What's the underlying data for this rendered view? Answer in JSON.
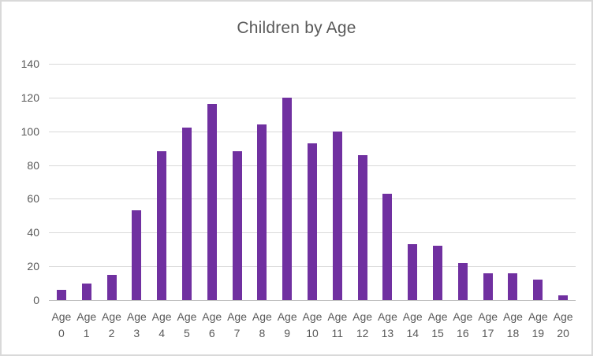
{
  "chart_data": {
    "type": "bar",
    "title": "Children by Age",
    "categories": [
      "Age 0",
      "Age 1",
      "Age 2",
      "Age 3",
      "Age 4",
      "Age 5",
      "Age 6",
      "Age 7",
      "Age 8",
      "Age 9",
      "Age 10",
      "Age 11",
      "Age 12",
      "Age 13",
      "Age 14",
      "Age 15",
      "Age 16",
      "Age 17",
      "Age 18",
      "Age 19",
      "Age 20"
    ],
    "values": [
      6,
      10,
      15,
      53,
      88,
      102,
      116,
      88,
      104,
      120,
      93,
      100,
      86,
      63,
      33,
      32,
      22,
      16,
      16,
      12,
      3
    ],
    "xlabel": "",
    "ylabel": "",
    "ylim": [
      0,
      140
    ],
    "yticks": [
      0,
      20,
      40,
      60,
      80,
      100,
      120,
      140
    ],
    "grid": true,
    "legend_position": "none"
  },
  "colors": {
    "bar": "#7030a0",
    "text": "#595959",
    "gridline": "#d9d9d9",
    "axis_line": "#bfbfbf",
    "border": "#d9d9d9",
    "background": "#ffffff"
  }
}
